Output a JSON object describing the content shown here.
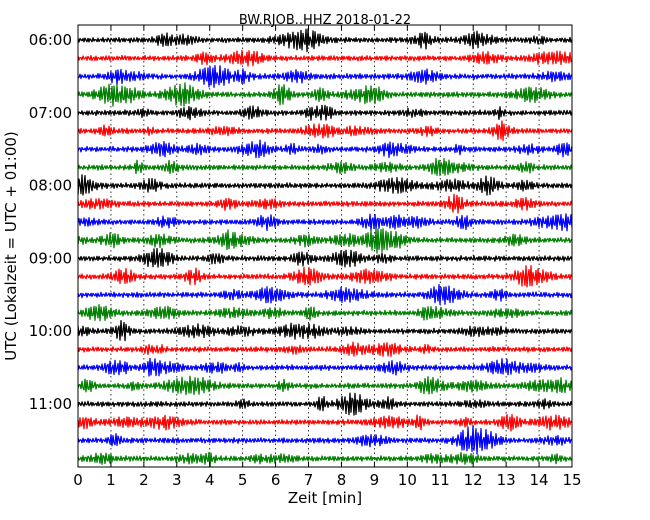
{
  "chart_data": {
    "type": "line",
    "title": "BW.RJOB..HHZ 2018-01-22",
    "xlabel": "Zeit  [min]",
    "ylabel": "UTC (Lokalzeit = UTC + 01:00)",
    "xlim": [
      0,
      15
    ],
    "x_ticks": [
      "0",
      "1",
      "2",
      "3",
      "4",
      "5",
      "6",
      "7",
      "8",
      "9",
      "10",
      "11",
      "12",
      "13",
      "14",
      "15"
    ],
    "y_tick_labels": [
      "06:00",
      "07:00",
      "08:00",
      "09:00",
      "10:00",
      "11:00"
    ],
    "grid": "vertical dotted at each minute",
    "line_colors": [
      "#000000",
      "#ff0000",
      "#0000ff",
      "#007f00"
    ],
    "series": [
      {
        "start": "06:00"
      },
      {
        "start": "06:15"
      },
      {
        "start": "06:30"
      },
      {
        "start": "06:45"
      },
      {
        "start": "07:00"
      },
      {
        "start": "07:15"
      },
      {
        "start": "07:30"
      },
      {
        "start": "07:45"
      },
      {
        "start": "08:00"
      },
      {
        "start": "08:15"
      },
      {
        "start": "08:30"
      },
      {
        "start": "08:45"
      },
      {
        "start": "09:00"
      },
      {
        "start": "09:15"
      },
      {
        "start": "09:30"
      },
      {
        "start": "09:45"
      },
      {
        "start": "10:00"
      },
      {
        "start": "10:15"
      },
      {
        "start": "10:30"
      },
      {
        "start": "10:45"
      },
      {
        "start": "11:00"
      },
      {
        "start": "11:15"
      },
      {
        "start": "11:30"
      },
      {
        "start": "11:45"
      }
    ]
  }
}
